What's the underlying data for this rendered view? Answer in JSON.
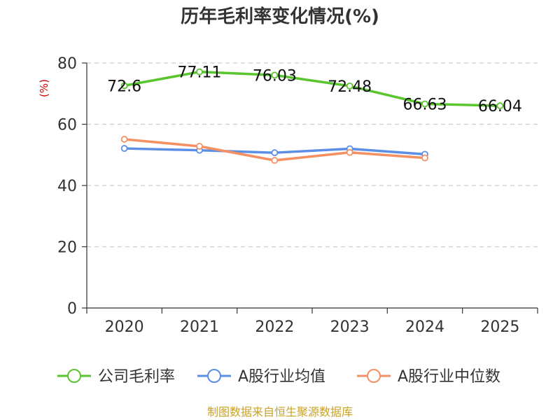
{
  "colors": {
    "company": "#5ac62e",
    "industry_avg": "#5b8ee6",
    "industry_median": "#f59062",
    "axis": "#333333",
    "grid": "#cccccc",
    "unit": "#d00000",
    "source": "#c9a227"
  },
  "chart_data": {
    "type": "line",
    "title": "历年毛利率变化情况(%)",
    "ylabel": "(%)",
    "xlabel": "",
    "ylim": [
      0,
      80
    ],
    "yticks": [
      0,
      20,
      40,
      60,
      80
    ],
    "grid": true,
    "legend_position": "bottom",
    "categories": [
      "2020",
      "2021",
      "2022",
      "2023",
      "2024",
      "2025"
    ],
    "series": [
      {
        "name": "公司毛利率",
        "values": [
          72.6,
          77.11,
          76.03,
          72.48,
          66.63,
          66.04
        ],
        "labels": [
          "72.6",
          "77.11",
          "76.03",
          "72.48",
          "66.63",
          "66.04"
        ]
      },
      {
        "name": "A股行业均值",
        "values": [
          52.1,
          51.5,
          50.7,
          52.0,
          50.2,
          null
        ]
      },
      {
        "name": "A股行业中位数",
        "values": [
          55.1,
          52.8,
          48.2,
          50.8,
          49.0,
          null
        ]
      }
    ]
  },
  "source": "制图数据来自恒生聚源数据库"
}
